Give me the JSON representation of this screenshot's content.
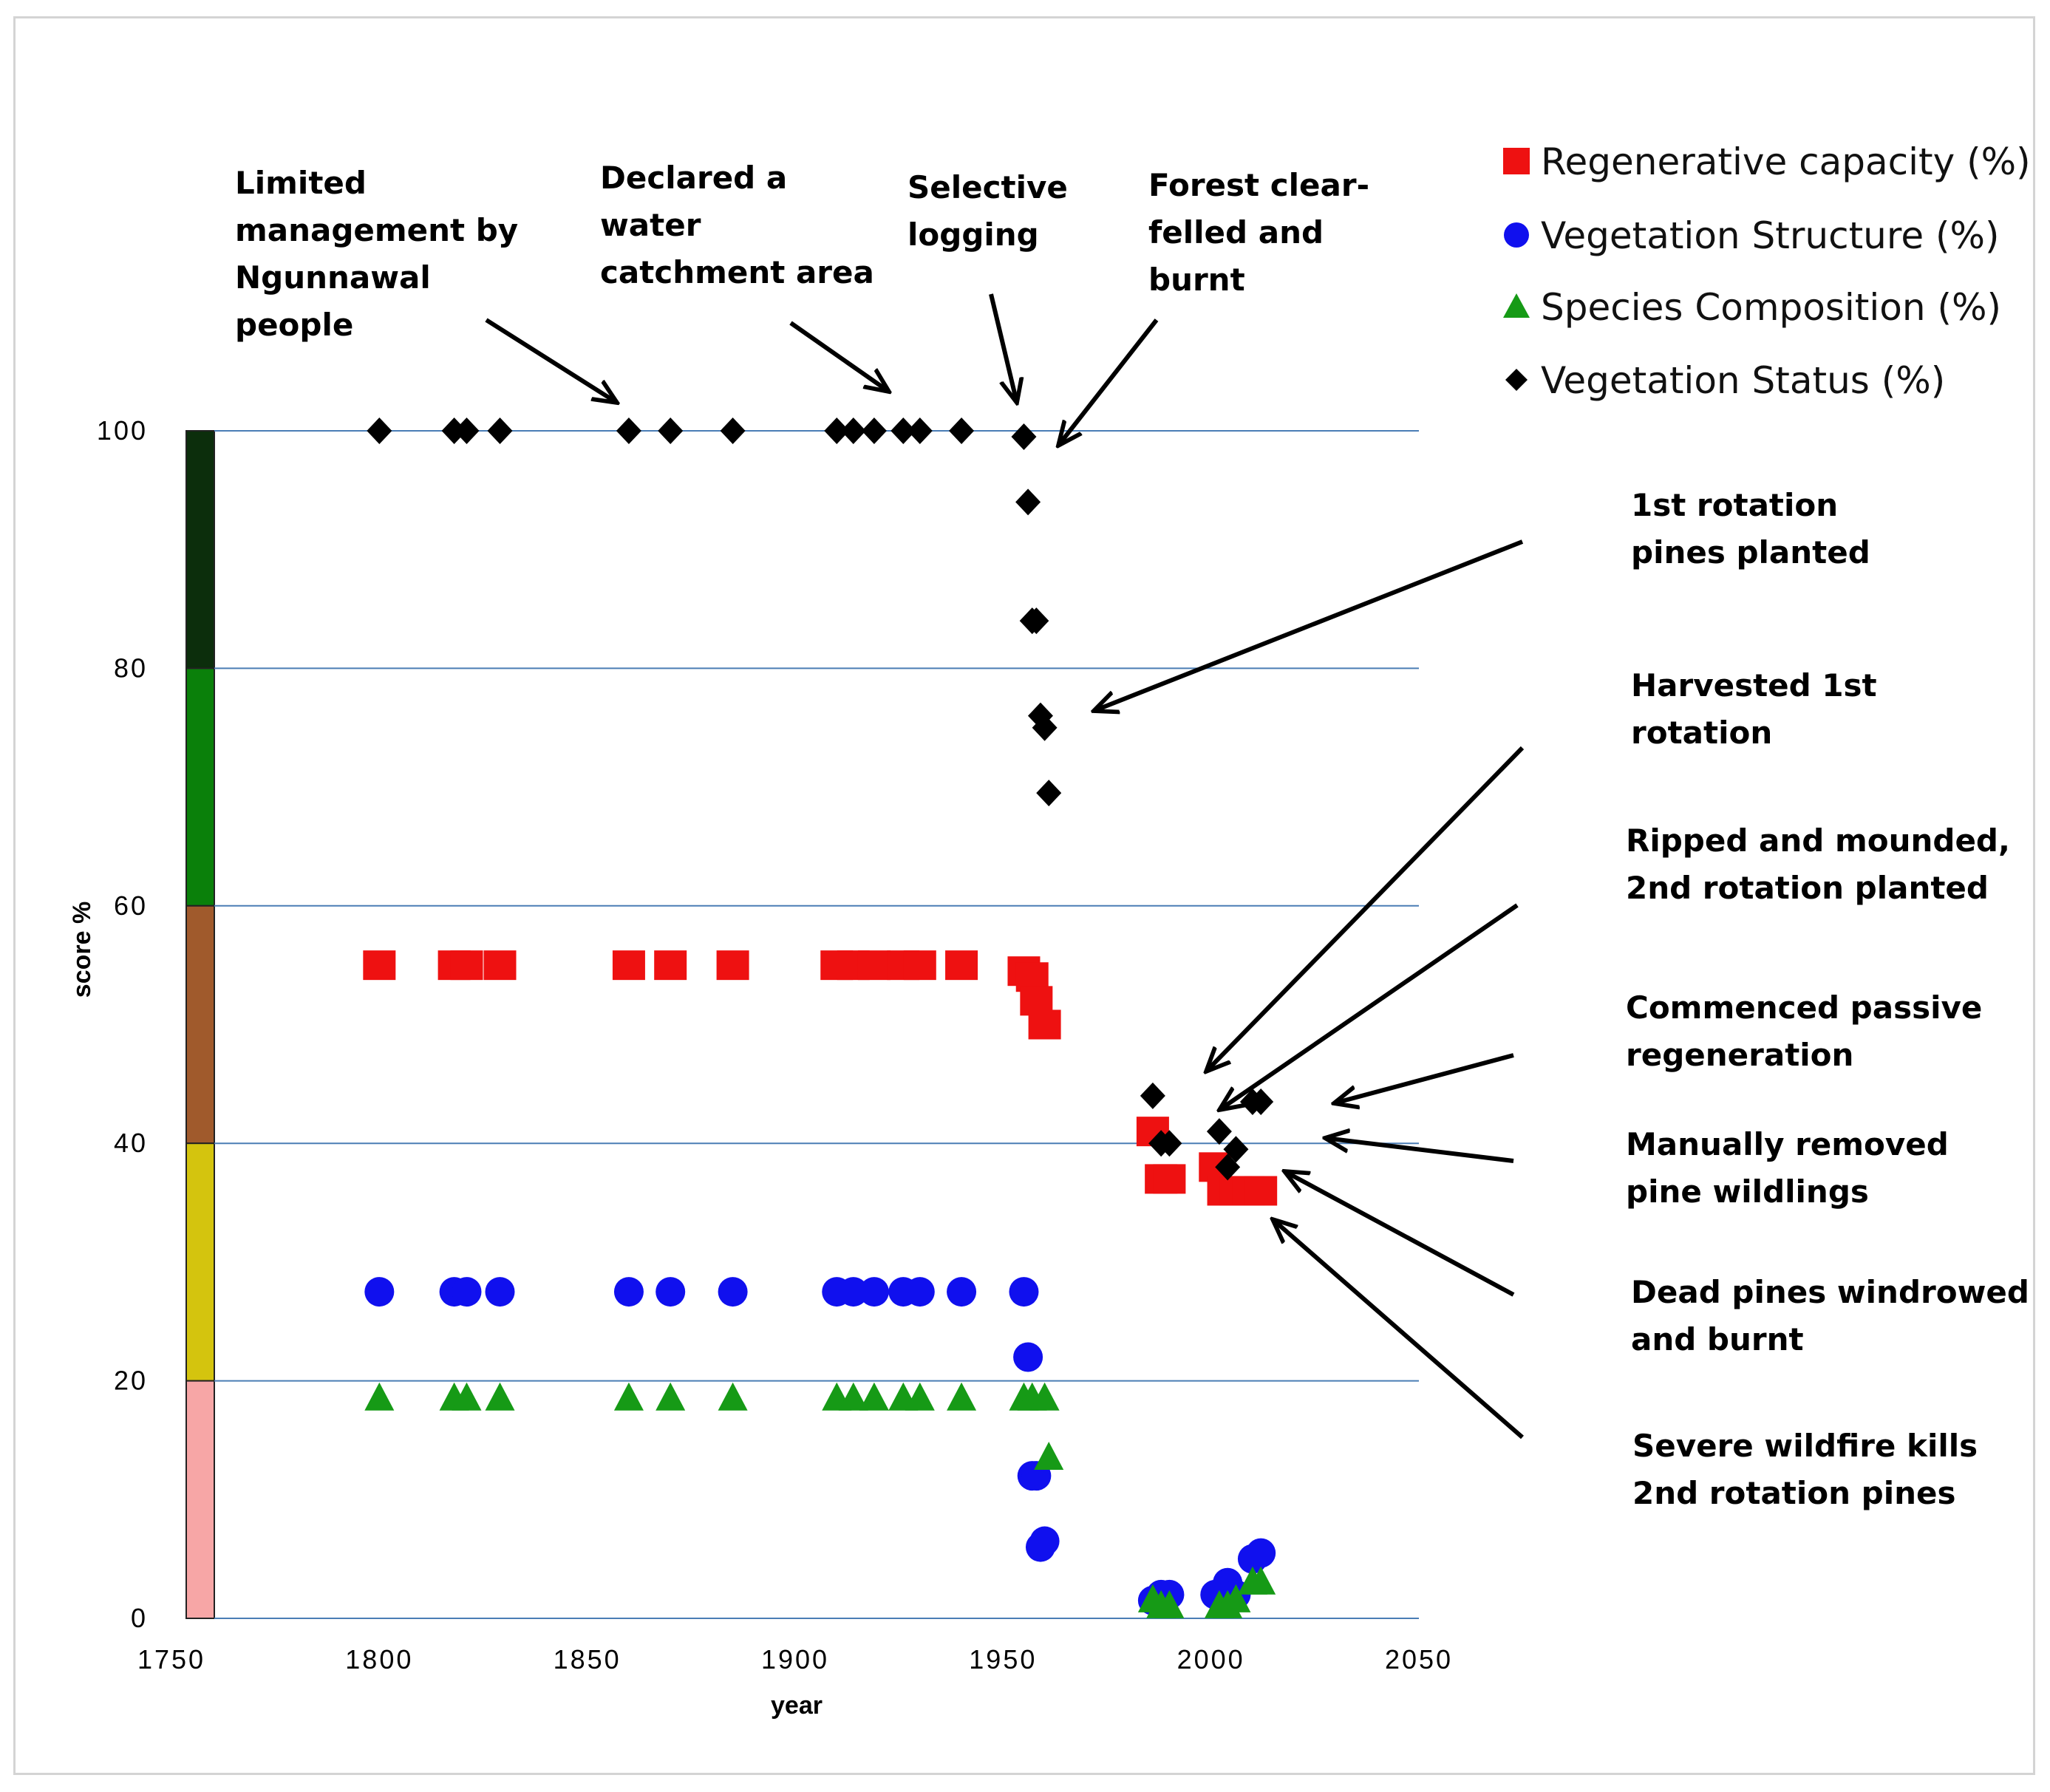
{
  "chart_data": {
    "type": "scatter",
    "title": "",
    "xlabel": "year",
    "ylabel": "score %",
    "xlim": [
      1750,
      2050
    ],
    "ylim": [
      0,
      100
    ],
    "xticks": [
      1750,
      1800,
      1850,
      1900,
      1950,
      2000,
      2050
    ],
    "yticks": [
      0,
      20,
      40,
      60,
      80,
      100
    ],
    "grid": "horizontal",
    "legend_position": "top-right",
    "score_bands": [
      {
        "from": 80,
        "to": 100,
        "color": "#0c2e0c"
      },
      {
        "from": 60,
        "to": 80,
        "color": "#0a800a"
      },
      {
        "from": 40,
        "to": 60,
        "color": "#a05a2c"
      },
      {
        "from": 20,
        "to": 40,
        "color": "#d4c40e"
      },
      {
        "from": 0,
        "to": 20,
        "color": "#f7a6a6"
      }
    ],
    "series": [
      {
        "name": "Regenerative capacity (%)",
        "marker": "square",
        "color": "#ee1111",
        "points": [
          [
            1800,
            55
          ],
          [
            1818,
            55
          ],
          [
            1821,
            55
          ],
          [
            1829,
            55
          ],
          [
            1860,
            55
          ],
          [
            1870,
            55
          ],
          [
            1885,
            55
          ],
          [
            1910,
            55
          ],
          [
            1914,
            55
          ],
          [
            1919,
            55
          ],
          [
            1926,
            55
          ],
          [
            1930,
            55
          ],
          [
            1940,
            55
          ],
          [
            1955,
            54.5
          ],
          [
            1957,
            54
          ],
          [
            1958,
            52
          ],
          [
            1960,
            50
          ],
          [
            1986,
            41
          ],
          [
            1988,
            37
          ],
          [
            1990,
            37
          ],
          [
            2001,
            38
          ],
          [
            2003,
            36
          ],
          [
            2006,
            36
          ],
          [
            2009,
            36
          ],
          [
            2012,
            36
          ]
        ]
      },
      {
        "name": "Vegetation Structure (%)",
        "marker": "circle",
        "color": "#1010ee",
        "points": [
          [
            1800,
            27.5
          ],
          [
            1818,
            27.5
          ],
          [
            1821,
            27.5
          ],
          [
            1829,
            27.5
          ],
          [
            1860,
            27.5
          ],
          [
            1870,
            27.5
          ],
          [
            1885,
            27.5
          ],
          [
            1910,
            27.5
          ],
          [
            1914,
            27.5
          ],
          [
            1919,
            27.5
          ],
          [
            1926,
            27.5
          ],
          [
            1930,
            27.5
          ],
          [
            1940,
            27.5
          ],
          [
            1955,
            27.5
          ],
          [
            1956,
            22
          ],
          [
            1957,
            12
          ],
          [
            1958,
            12
          ],
          [
            1959,
            6
          ],
          [
            1960,
            6.5
          ],
          [
            1986,
            1.5
          ],
          [
            1988,
            2
          ],
          [
            1990,
            2
          ],
          [
            2001,
            2
          ],
          [
            2004,
            3
          ],
          [
            2006,
            2
          ],
          [
            2010,
            5
          ],
          [
            2012,
            5.5
          ]
        ]
      },
      {
        "name": "Species Composition (%)",
        "marker": "triangle",
        "color": "#169a16",
        "points": [
          [
            1800,
            18.5
          ],
          [
            1818,
            18.5
          ],
          [
            1821,
            18.5
          ],
          [
            1829,
            18.5
          ],
          [
            1860,
            18.5
          ],
          [
            1870,
            18.5
          ],
          [
            1885,
            18.5
          ],
          [
            1910,
            18.5
          ],
          [
            1914,
            18.5
          ],
          [
            1919,
            18.5
          ],
          [
            1926,
            18.5
          ],
          [
            1930,
            18.5
          ],
          [
            1940,
            18.5
          ],
          [
            1955,
            18.5
          ],
          [
            1957,
            18.5
          ],
          [
            1960,
            18.5
          ],
          [
            1961,
            13.5
          ],
          [
            1986,
            1.5
          ],
          [
            1988,
            1
          ],
          [
            1990,
            1
          ],
          [
            2002,
            1
          ],
          [
            2004,
            1
          ],
          [
            2006,
            1.5
          ],
          [
            2010,
            3
          ],
          [
            2012,
            3
          ]
        ]
      },
      {
        "name": "Vegetation Status (%)",
        "marker": "diamond",
        "color": "#000000",
        "points": [
          [
            1800,
            100
          ],
          [
            1818,
            100
          ],
          [
            1821,
            100
          ],
          [
            1829,
            100
          ],
          [
            1860,
            100
          ],
          [
            1870,
            100
          ],
          [
            1885,
            100
          ],
          [
            1910,
            100
          ],
          [
            1914,
            100
          ],
          [
            1919,
            100
          ],
          [
            1926,
            100
          ],
          [
            1930,
            100
          ],
          [
            1940,
            100
          ],
          [
            1955,
            99.5
          ],
          [
            1956,
            94
          ],
          [
            1957,
            84
          ],
          [
            1958,
            84
          ],
          [
            1959,
            76
          ],
          [
            1960,
            75
          ],
          [
            1961,
            69.5
          ],
          [
            1986,
            44
          ],
          [
            1988,
            40
          ],
          [
            1990,
            40
          ],
          [
            2002,
            41
          ],
          [
            2004,
            38
          ],
          [
            2006,
            39.5
          ],
          [
            2010,
            43.5
          ],
          [
            2012,
            43.5
          ]
        ]
      }
    ],
    "annotations": [
      {
        "lines": [
          "Limited",
          "management by",
          "Ngunnawal",
          "people"
        ]
      },
      {
        "lines": [
          "Declared a",
          "water",
          "catchment area"
        ]
      },
      {
        "lines": [
          "Selective",
          "logging"
        ]
      },
      {
        "lines": [
          "Forest clear-",
          "felled and",
          "burnt"
        ]
      },
      {
        "lines": [
          "1st rotation",
          "pines planted"
        ]
      },
      {
        "lines": [
          "Harvested 1st",
          "rotation"
        ]
      },
      {
        "lines": [
          "Ripped and mounded,",
          "2nd rotation planted"
        ]
      },
      {
        "lines": [
          "Commenced passive",
          "regeneration"
        ]
      },
      {
        "lines": [
          "Manually removed",
          "pine wildlings"
        ]
      },
      {
        "lines": [
          "Dead pines windrowed",
          "and burnt"
        ]
      },
      {
        "lines": [
          "Severe wildfire kills",
          "2nd rotation pines"
        ]
      }
    ]
  }
}
